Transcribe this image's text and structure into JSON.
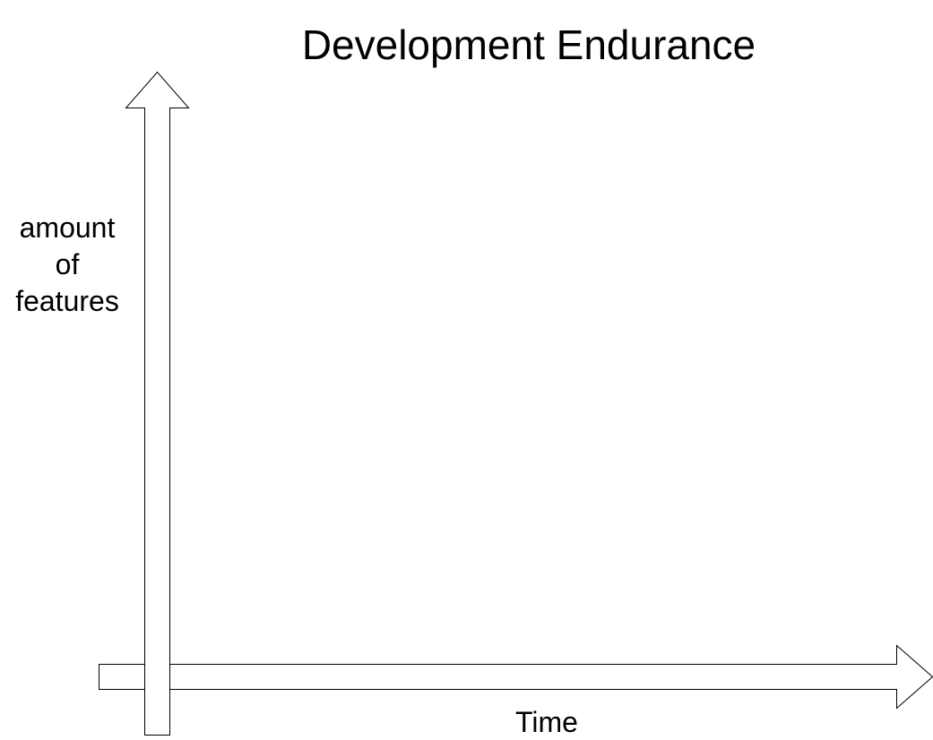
{
  "diagram": {
    "title": "Development Endurance",
    "y_axis_label_lines": [
      "amount",
      "of",
      "features"
    ],
    "x_axis_label": "Time"
  },
  "colors": {
    "stroke": "#000000",
    "fill": "#ffffff",
    "text": "#000000"
  }
}
